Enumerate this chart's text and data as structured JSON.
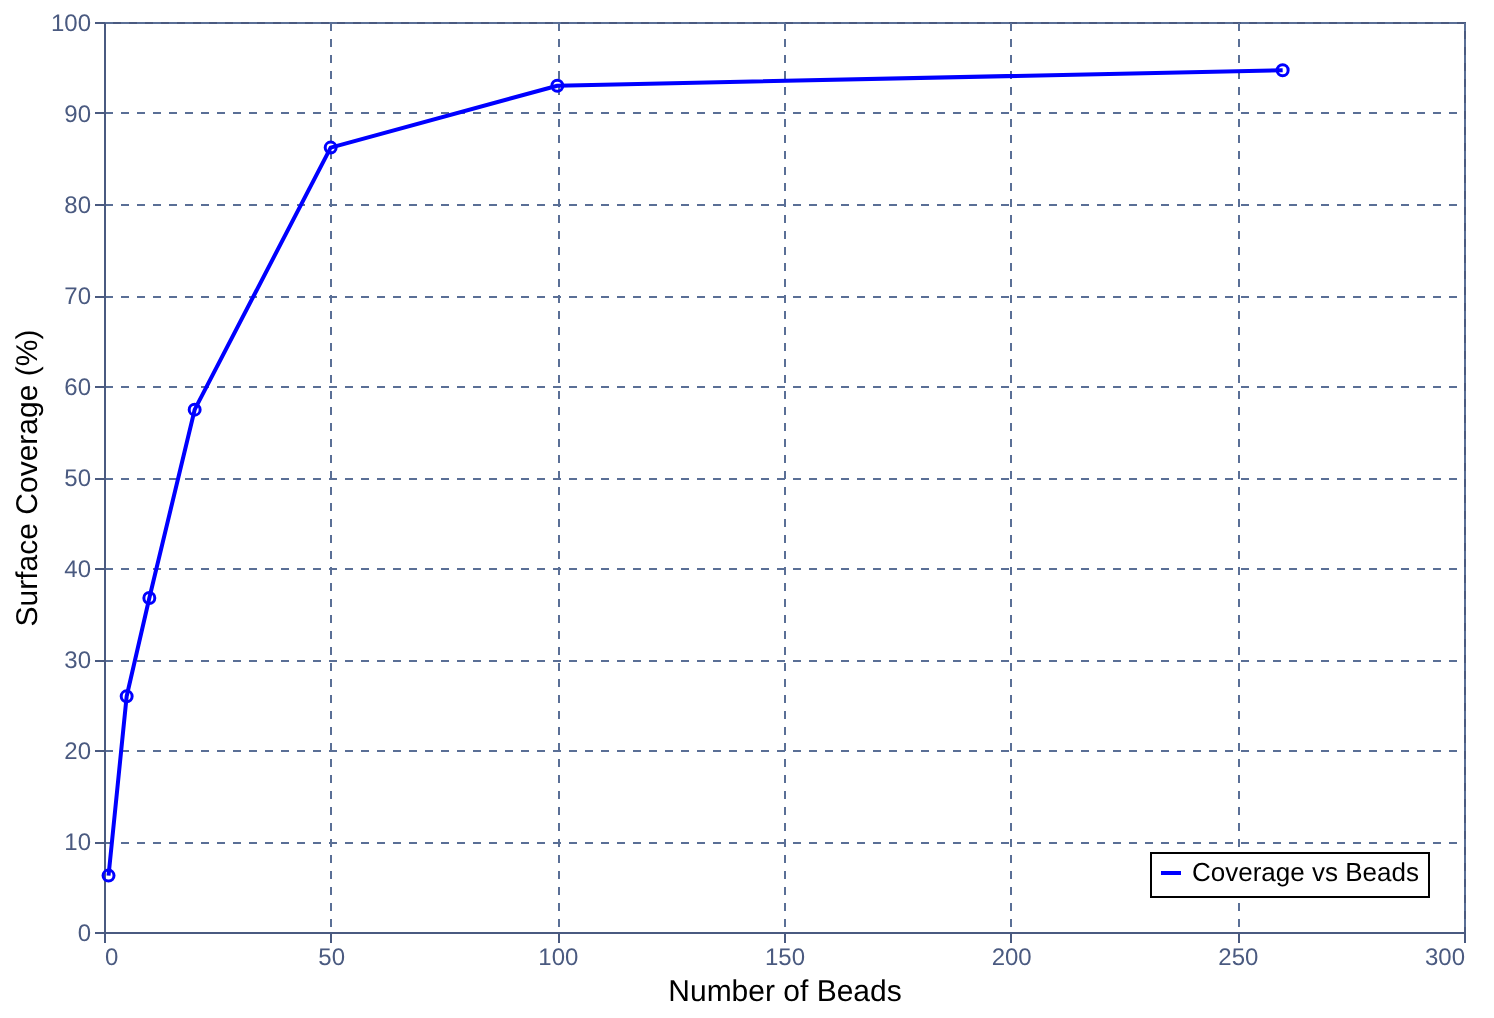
{
  "chart_data": {
    "type": "line",
    "xlabel": "Number of Beads",
    "ylabel": "Surface Coverage (%)",
    "x": [
      1,
      5,
      10,
      20,
      50,
      100,
      260
    ],
    "series": [
      {
        "name": "Coverage vs Beads",
        "color": "#0000ff",
        "values": [
          6.2,
          25.9,
          36.7,
          57.4,
          86.2,
          93,
          94.7
        ]
      }
    ],
    "xlim": [
      0,
      300
    ],
    "xticks": [
      0,
      50,
      100,
      150,
      200,
      250,
      300
    ],
    "ylim": [
      0,
      100
    ],
    "yticks": [
      0,
      10,
      20,
      30,
      40,
      50,
      60,
      70,
      80,
      90,
      100
    ],
    "grid": true,
    "legend": "bottom right",
    "marker": "circle",
    "line_style": "solid"
  }
}
